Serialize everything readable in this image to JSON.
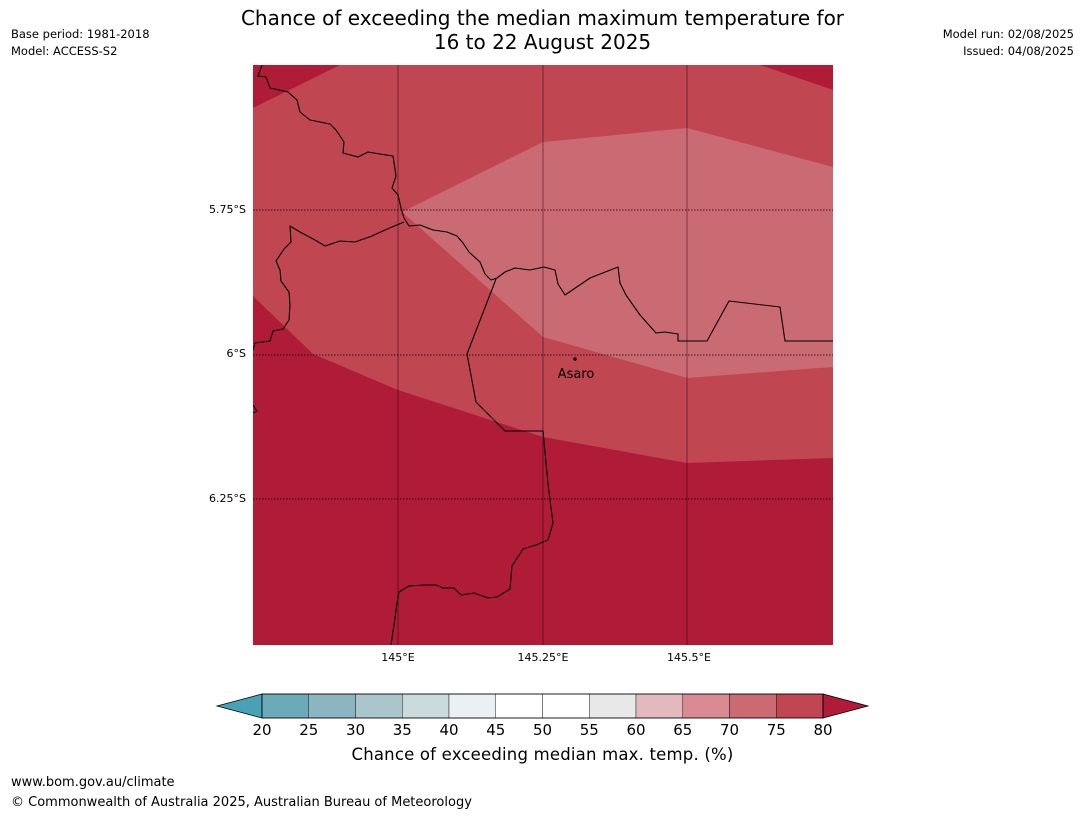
{
  "header": {
    "title_line1": "Chance of exceeding the median maximum temperature for",
    "title_line2": "16 to 22 August 2025",
    "base_period": "Base period: 1981-2018",
    "model": "Model: ACCESS-S2",
    "model_run": "Model run: 02/08/2025",
    "issued": "Issued: 04/08/2025"
  },
  "map": {
    "lat_labels": [
      "5.75°S",
      "6°S",
      "6.25°S"
    ],
    "lon_labels": [
      "145°E",
      "145.25°E",
      "145.5°E"
    ],
    "place": {
      "name": "Asaro",
      "lat": -6.01,
      "lon": 145.3
    }
  },
  "legend": {
    "title": "Chance of exceeding median max. temp. (%)",
    "ticks": [
      "20",
      "25",
      "30",
      "35",
      "40",
      "45",
      "50",
      "55",
      "60",
      "65",
      "70",
      "75",
      "80"
    ],
    "colors": [
      "#4aa0b4",
      "#6ca9b9",
      "#8cb5c2",
      "#aac6cc",
      "#cadbdd",
      "#ebf1f2",
      "#ffffff",
      "#ffffff",
      "#e8e8e8",
      "#e3b9bd",
      "#d98b94",
      "#ca6a72",
      "#c04652",
      "#b01c38"
    ]
  },
  "colors": {
    "band_80": "#b01c38",
    "band_75": "#c04652",
    "band_70": "#ca6a72"
  },
  "footer": {
    "url": "www.bom.gov.au/climate",
    "copyright": "© Commonwealth of Australia 2025, Australian Bureau of Meteorology"
  }
}
